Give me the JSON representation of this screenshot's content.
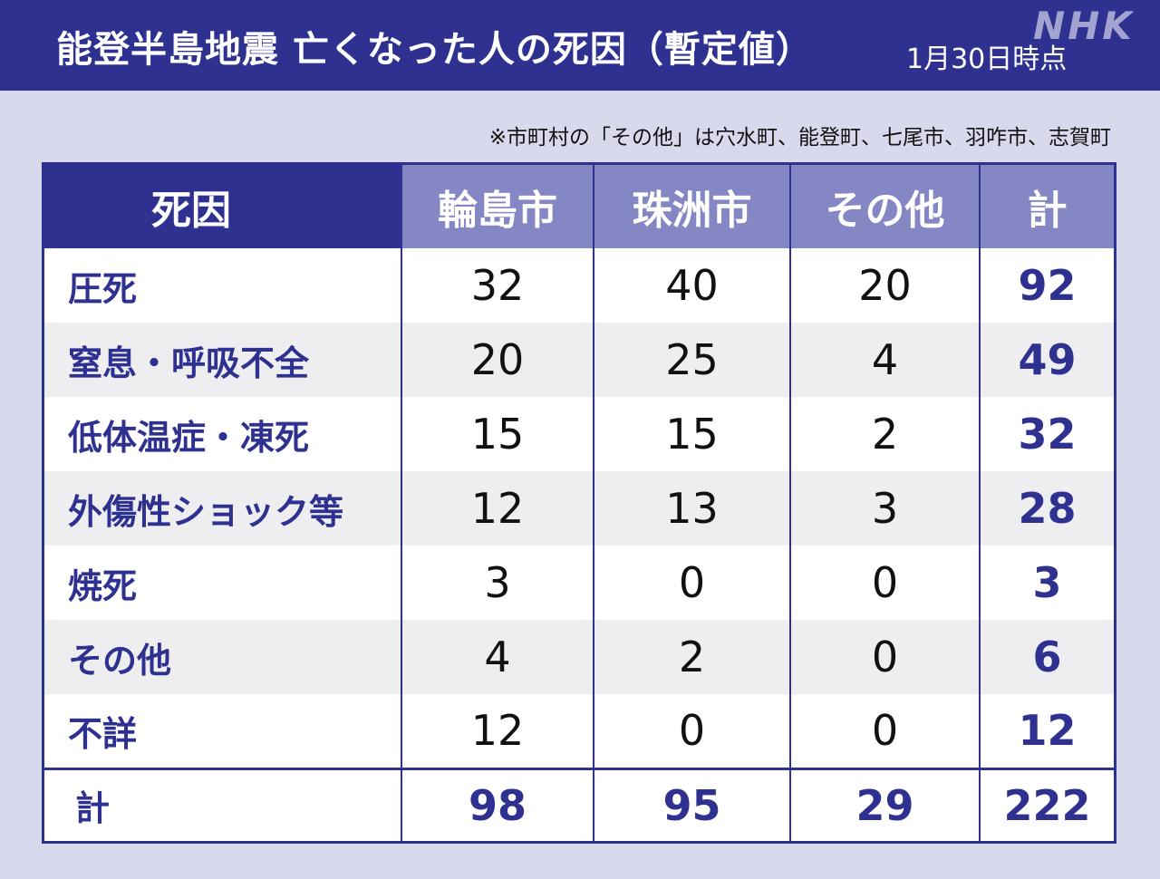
{
  "header": {
    "title": "能登半島地震 亡くなった人の死因（暫定値）",
    "date": "1月30日時点",
    "logo": "NHK"
  },
  "note": "※市町村の「その他」は穴水町、能登町、七尾市、羽咋市、志賀町",
  "table": {
    "columns": [
      "死因",
      "輪島市",
      "珠洲市",
      "その他",
      "計"
    ],
    "rows": [
      {
        "cause": "圧死",
        "wajima": "32",
        "suzu": "40",
        "other": "20",
        "total": "92"
      },
      {
        "cause": "窒息・呼吸不全",
        "wajima": "20",
        "suzu": "25",
        "other": "4",
        "total": "49"
      },
      {
        "cause": "低体温症・凍死",
        "wajima": "15",
        "suzu": "15",
        "other": "2",
        "total": "32"
      },
      {
        "cause": "外傷性ショック等",
        "wajima": "12",
        "suzu": "13",
        "other": "3",
        "total": "28"
      },
      {
        "cause": "焼死",
        "wajima": "3",
        "suzu": "0",
        "other": "0",
        "total": "3"
      },
      {
        "cause": "その他",
        "wajima": "4",
        "suzu": "2",
        "other": "0",
        "total": "6"
      },
      {
        "cause": "不詳",
        "wajima": "12",
        "suzu": "0",
        "other": "0",
        "total": "12"
      }
    ],
    "total": {
      "cause": "計",
      "wajima": "98",
      "suzu": "95",
      "other": "29",
      "total": "222"
    }
  },
  "colors": {
    "navy": "#2f3191",
    "header_cell": "#8587c4",
    "background": "#d9d9ee",
    "row_alt": "#eeeef0"
  }
}
